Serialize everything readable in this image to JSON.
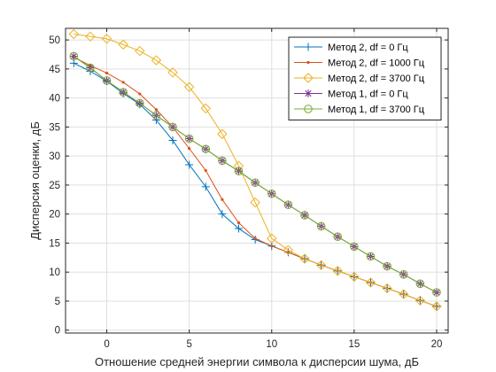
{
  "chart_data": {
    "type": "line",
    "title": "",
    "xlabel": "Отношение средней энергии символа к дисперсии шума, дБ",
    "ylabel": "Дисперсия оценки, дБ",
    "xlim": [
      -2.5,
      20.7
    ],
    "ylim": [
      -0.5,
      52
    ],
    "xticks": [
      0,
      5,
      10,
      15,
      20
    ],
    "yticks": [
      0,
      5,
      10,
      15,
      20,
      25,
      30,
      35,
      40,
      45,
      50
    ],
    "xtick_labels": [
      "0",
      "5",
      "10",
      "15",
      "20"
    ],
    "ytick_labels": [
      "0",
      "5",
      "10",
      "15",
      "20",
      "25",
      "30",
      "35",
      "40",
      "45",
      "50"
    ],
    "grid": true,
    "legend_position": "top-right",
    "series": [
      {
        "name": "Метод 2, df = 0 Гц",
        "color": "#0072BD",
        "marker": "plus",
        "x": [
          -2,
          -1,
          0,
          1,
          2,
          3,
          4,
          5,
          6,
          7,
          8,
          9,
          10,
          11,
          12,
          13,
          14,
          15,
          16,
          17,
          18,
          19,
          20
        ],
        "y": [
          46.0,
          44.6,
          42.9,
          40.8,
          38.9,
          36.2,
          32.7,
          28.5,
          24.7,
          20.0,
          17.5,
          15.6,
          14.5,
          13.4,
          12.3,
          11.2,
          10.2,
          9.2,
          8.2,
          7.2,
          6.2,
          5.1,
          4.1
        ]
      },
      {
        "name": "Метод 2, df = 1000 Гц",
        "color": "#D95319",
        "marker": "dot",
        "x": [
          -2,
          -1,
          0,
          1,
          2,
          3,
          4,
          5,
          6,
          7,
          8,
          9,
          10,
          11,
          12,
          13,
          14,
          15,
          16,
          17,
          18,
          19,
          20
        ],
        "y": [
          47.0,
          45.6,
          44.3,
          42.7,
          40.7,
          38.0,
          35.0,
          31.3,
          27.5,
          22.5,
          18.5,
          15.8,
          14.5,
          13.4,
          12.3,
          11.2,
          10.2,
          9.2,
          8.2,
          7.2,
          6.2,
          5.1,
          4.1
        ]
      },
      {
        "name": "Метод 2, df = 3700 Гц",
        "color": "#EDB120",
        "marker": "diamond",
        "x": [
          -2,
          -1,
          0,
          1,
          2,
          3,
          4,
          5,
          6,
          7,
          8,
          9,
          10,
          11,
          12,
          13,
          14,
          15,
          16,
          17,
          18,
          19,
          20
        ],
        "y": [
          51.0,
          50.6,
          50.2,
          49.2,
          48.1,
          46.5,
          44.4,
          41.9,
          38.2,
          33.8,
          28.3,
          22.0,
          15.8,
          13.8,
          12.3,
          11.2,
          10.2,
          9.2,
          8.2,
          7.2,
          6.2,
          5.1,
          4.1
        ]
      },
      {
        "name": "Метод 1, df = 0 Гц",
        "color": "#7E2F8E",
        "marker": "asterisk",
        "x": [
          -2,
          -1,
          0,
          1,
          2,
          3,
          4,
          5,
          6,
          7,
          8,
          9,
          10,
          11,
          12,
          13,
          14,
          15,
          16,
          17,
          18,
          19,
          20
        ],
        "y": [
          47.2,
          45.2,
          43.0,
          41.0,
          39.1,
          37.0,
          35.0,
          33.0,
          31.2,
          29.2,
          27.4,
          25.4,
          23.5,
          21.6,
          19.8,
          17.9,
          16.1,
          14.4,
          12.7,
          11.0,
          9.6,
          8.0,
          6.5
        ]
      },
      {
        "name": "Метод 1, df = 3700 Гц",
        "color": "#77AC30",
        "marker": "circle",
        "x": [
          -2,
          -1,
          0,
          1,
          2,
          3,
          4,
          5,
          6,
          7,
          8,
          9,
          10,
          11,
          12,
          13,
          14,
          15,
          16,
          17,
          18,
          19,
          20
        ],
        "y": [
          47.2,
          45.2,
          43.0,
          41.0,
          39.1,
          37.0,
          35.0,
          33.0,
          31.2,
          29.2,
          27.4,
          25.4,
          23.5,
          21.6,
          19.8,
          17.9,
          16.1,
          14.4,
          12.7,
          11.0,
          9.6,
          8.0,
          6.5
        ]
      }
    ]
  }
}
